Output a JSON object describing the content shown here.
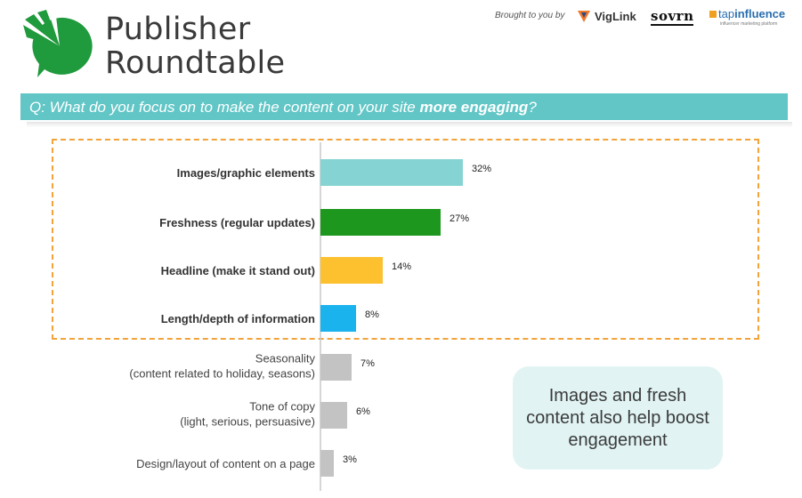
{
  "header": {
    "brand_line1": "Publisher",
    "brand_line2": "Roundtable",
    "brought_to_you_by": "Brought to you by",
    "sponsors": [
      "VigLink",
      "sovrn",
      "tapinfluence"
    ],
    "tap_prefix": "tap",
    "tap_suffix": "influence",
    "tap_tagline": "influencer marketing platform"
  },
  "question": {
    "prefix": "Q: What do you focus on to make the content on your site ",
    "emphasis": "more engaging",
    "suffix": "?"
  },
  "callout": {
    "text": "Images and fresh content also help boost engagement"
  },
  "colors": {
    "teal": "#62c6c6",
    "highlight_border": "#f2a33a",
    "callout_bg": "#e1f3f3"
  },
  "chart_data": {
    "type": "bar",
    "orientation": "horizontal",
    "title": "",
    "xlabel": "",
    "ylabel": "",
    "xlim": [
      0,
      32
    ],
    "grid": false,
    "categories": [
      [
        "Images/graphic elements"
      ],
      [
        "Freshness (regular updates)"
      ],
      [
        "Headline (make it stand out)"
      ],
      [
        "Length/depth of information"
      ],
      [
        "Seasonality",
        "(content related to holiday, seasons)"
      ],
      [
        "Tone of copy",
        "(light, serious, persuasive)"
      ],
      [
        "Design/layout of content on a page"
      ]
    ],
    "values": [
      32,
      27,
      14,
      8,
      7,
      6,
      3
    ],
    "value_labels": [
      "32%",
      "27%",
      "14%",
      "8%",
      "7%",
      "6%",
      "3%"
    ],
    "bold_labels": [
      true,
      true,
      true,
      true,
      false,
      false,
      false
    ],
    "bar_colors": [
      "#85d3d2",
      "#1d971d",
      "#fdc02f",
      "#1ab3ee",
      "#c3c3c3",
      "#c3c3c3",
      "#c3c3c3"
    ]
  }
}
